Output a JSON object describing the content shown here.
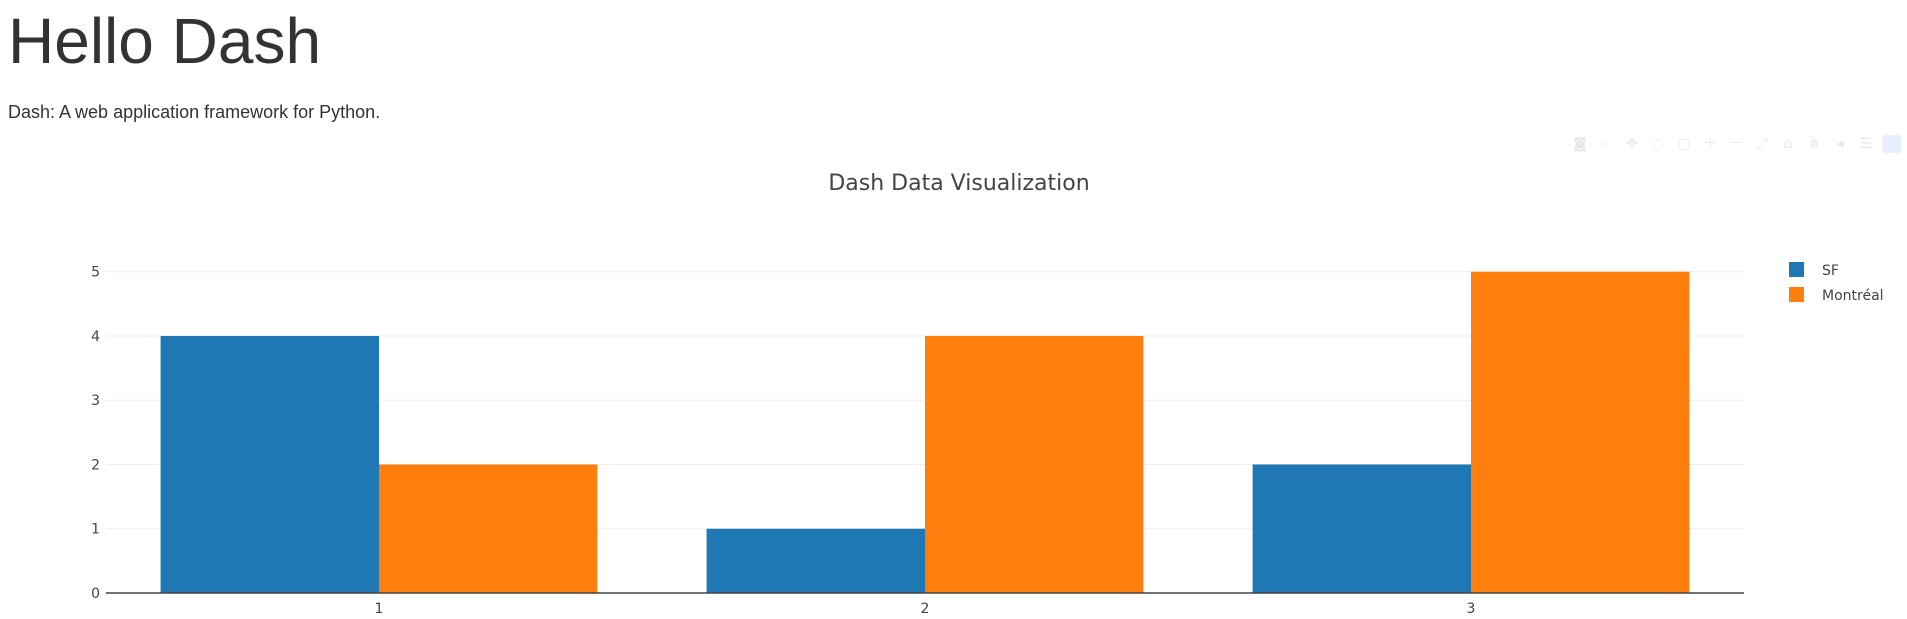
{
  "page": {
    "heading": "Hello Dash",
    "subtitle": "Dash: A web application framework for Python."
  },
  "modebar": {
    "icons": [
      "camera-icon",
      "zoom-icon",
      "pan-icon",
      "lasso-select-icon",
      "box-select-icon",
      "zoom-in-icon",
      "zoom-out-icon",
      "autoscale-icon",
      "reset-axes-icon",
      "spike-lines-icon",
      "hover-closest-icon",
      "hover-compare-icon",
      "plotly-logo-icon"
    ]
  },
  "colors": {
    "text": "#333333",
    "axis_text": "#444444",
    "grid": "#eeeeee",
    "axis_line": "#444444"
  },
  "chart_data": {
    "type": "bar",
    "title": "Dash Data Visualization",
    "xlabel": "",
    "ylabel": "",
    "categories": [
      "1",
      "2",
      "3"
    ],
    "series": [
      {
        "name": "SF",
        "values": [
          4,
          1,
          2
        ],
        "color": "#1f77b4"
      },
      {
        "name": "Montréal",
        "values": [
          2,
          4,
          5
        ],
        "color": "#ff7f0e"
      }
    ],
    "ylim": [
      0,
      5.26
    ],
    "yticks": [
      0,
      1,
      2,
      3,
      4,
      5
    ],
    "grid": true,
    "legend_position": "top-right"
  }
}
